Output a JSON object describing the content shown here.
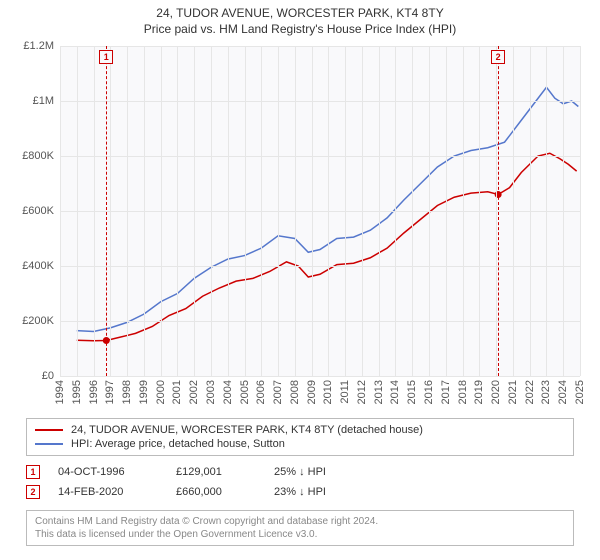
{
  "title": "24, TUDOR AVENUE, WORCESTER PARK, KT4 8TY",
  "subtitle": "Price paid vs. HM Land Registry's House Price Index (HPI)",
  "chart": {
    "type": "line",
    "background_color": "#f9f9fb",
    "grid_color": "#e6e6e6",
    "axis_text_color": "#555555",
    "x": {
      "min": 1994,
      "max": 2025,
      "ticks": [
        1994,
        1995,
        1996,
        1997,
        1998,
        1999,
        2000,
        2001,
        2002,
        2003,
        2004,
        2005,
        2006,
        2007,
        2008,
        2009,
        2010,
        2011,
        2012,
        2013,
        2014,
        2015,
        2016,
        2017,
        2018,
        2019,
        2020,
        2021,
        2022,
        2023,
        2024,
        2025
      ]
    },
    "y": {
      "min": 0,
      "max": 1200000,
      "ticks": [
        0,
        200000,
        400000,
        600000,
        800000,
        1000000,
        1200000
      ],
      "tick_labels": [
        "£0",
        "£200K",
        "£400K",
        "£600K",
        "£800K",
        "£1M",
        "£1.2M"
      ]
    },
    "series": [
      {
        "id": "property",
        "label": "24, TUDOR AVENUE, WORCESTER PARK, KT4 8TY (detached house)",
        "color": "#cc0000",
        "line_width": 1.5,
        "points": [
          [
            1995.0,
            130000
          ],
          [
            1996.0,
            128000
          ],
          [
            1996.76,
            129001
          ],
          [
            1997.5,
            140000
          ],
          [
            1998.5,
            155000
          ],
          [
            1999.5,
            180000
          ],
          [
            2000.5,
            220000
          ],
          [
            2001.5,
            245000
          ],
          [
            2002.5,
            290000
          ],
          [
            2003.5,
            320000
          ],
          [
            2004.5,
            345000
          ],
          [
            2005.5,
            355000
          ],
          [
            2006.5,
            380000
          ],
          [
            2007.5,
            415000
          ],
          [
            2008.2,
            400000
          ],
          [
            2008.8,
            360000
          ],
          [
            2009.5,
            370000
          ],
          [
            2010.5,
            405000
          ],
          [
            2011.5,
            410000
          ],
          [
            2012.5,
            430000
          ],
          [
            2013.5,
            465000
          ],
          [
            2014.5,
            520000
          ],
          [
            2015.5,
            570000
          ],
          [
            2016.5,
            620000
          ],
          [
            2017.5,
            650000
          ],
          [
            2018.5,
            665000
          ],
          [
            2019.5,
            670000
          ],
          [
            2020.12,
            660000
          ],
          [
            2020.8,
            685000
          ],
          [
            2021.5,
            740000
          ],
          [
            2022.5,
            800000
          ],
          [
            2023.2,
            810000
          ],
          [
            2023.8,
            790000
          ],
          [
            2024.3,
            770000
          ],
          [
            2024.8,
            745000
          ]
        ]
      },
      {
        "id": "hpi",
        "label": "HPI: Average price, detached house, Sutton",
        "color": "#5577cc",
        "line_width": 1.5,
        "points": [
          [
            1995.0,
            165000
          ],
          [
            1996.0,
            162000
          ],
          [
            1997.0,
            175000
          ],
          [
            1998.0,
            195000
          ],
          [
            1999.0,
            225000
          ],
          [
            2000.0,
            270000
          ],
          [
            2001.0,
            300000
          ],
          [
            2002.0,
            355000
          ],
          [
            2003.0,
            395000
          ],
          [
            2004.0,
            425000
          ],
          [
            2005.0,
            438000
          ],
          [
            2006.0,
            465000
          ],
          [
            2007.0,
            510000
          ],
          [
            2008.0,
            500000
          ],
          [
            2008.8,
            450000
          ],
          [
            2009.5,
            460000
          ],
          [
            2010.5,
            500000
          ],
          [
            2011.5,
            505000
          ],
          [
            2012.5,
            530000
          ],
          [
            2013.5,
            575000
          ],
          [
            2014.5,
            640000
          ],
          [
            2015.5,
            700000
          ],
          [
            2016.5,
            760000
          ],
          [
            2017.5,
            800000
          ],
          [
            2018.5,
            820000
          ],
          [
            2019.5,
            830000
          ],
          [
            2020.5,
            850000
          ],
          [
            2021.5,
            930000
          ],
          [
            2022.5,
            1010000
          ],
          [
            2023.0,
            1050000
          ],
          [
            2023.5,
            1010000
          ],
          [
            2024.0,
            990000
          ],
          [
            2024.5,
            1000000
          ],
          [
            2024.9,
            980000
          ]
        ]
      }
    ],
    "sale_markers": [
      {
        "n": "1",
        "year": 1996.76,
        "price": 129001,
        "color": "#cc0000"
      },
      {
        "n": "2",
        "year": 2020.12,
        "price": 660000,
        "color": "#cc0000"
      }
    ]
  },
  "legend": {
    "items": [
      {
        "color": "#cc0000",
        "label": "24, TUDOR AVENUE, WORCESTER PARK, KT4 8TY (detached house)"
      },
      {
        "color": "#5577cc",
        "label": "HPI: Average price, detached house, Sutton"
      }
    ]
  },
  "sales": [
    {
      "n": "1",
      "color": "#cc0000",
      "date": "04-OCT-1996",
      "price": "£129,001",
      "delta": "25% ↓ HPI"
    },
    {
      "n": "2",
      "color": "#cc0000",
      "date": "14-FEB-2020",
      "price": "£660,000",
      "delta": "23% ↓ HPI"
    }
  ],
  "credits": {
    "line1": "Contains HM Land Registry data © Crown copyright and database right 2024.",
    "line2": "This data is licensed under the Open Government Licence v3.0."
  }
}
